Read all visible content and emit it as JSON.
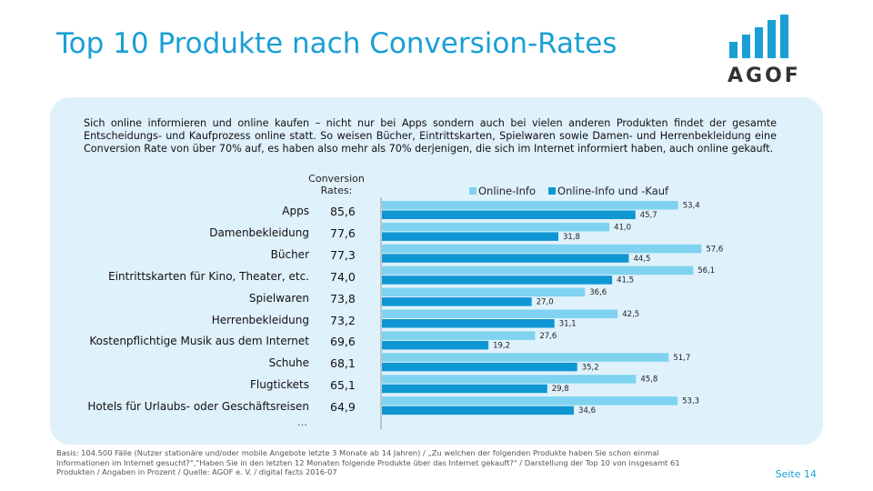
{
  "header": {
    "title": "Top 10 Produkte nach Conversion-Rates"
  },
  "logo": {
    "text": "AGOF",
    "bar_color": "#1a9fd5"
  },
  "intro": "Sich online informieren und online kaufen – nicht nur bei Apps sondern auch bei vielen anderen Produkten findet der gesamte Entscheidungs- und Kaufprozess online statt. So weisen Bücher, Eintrittskarten, Spielwaren sowie Damen- und Herrenbekleidung eine Conversion Rate von über 70% auf, es haben also mehr als 70% derjenigen, die sich im Internet informiert haben, auch online gekauft.",
  "conversion_header": {
    "line1": "Conversion",
    "line2": "Rates:"
  },
  "conversion_rates": [
    "85,6",
    "77,6",
    "77,3",
    "74,0",
    "73,8",
    "73,2",
    "69,6",
    "68,1",
    "65,1",
    "64,9"
  ],
  "ellipsis": "…",
  "chart_data": {
    "type": "bar",
    "orientation": "horizontal",
    "categories": [
      "Apps",
      "Damenbekleidung",
      "Bücher",
      "Eintrittskarten für Kino, Theater, etc.",
      "Spielwaren",
      "Herrenbekleidung",
      "Kostenpflichtige Musik aus dem Internet",
      "Schuhe",
      "Flugtickets",
      "Hotels für Urlaubs- oder Geschäftsreisen"
    ],
    "series": [
      {
        "name": "Online-Info",
        "color": "#7fd3f0",
        "values": [
          53.4,
          41.0,
          57.6,
          56.1,
          36.6,
          42.5,
          27.6,
          51.7,
          45.8,
          53.3
        ],
        "labels": [
          "53,4",
          "41,0",
          "57,6",
          "56,1",
          "36,6",
          "42,5",
          "27,6",
          "51,7",
          "45,8",
          "53,3"
        ]
      },
      {
        "name": "Online-Info und -Kauf",
        "color": "#0f97d4",
        "values": [
          45.7,
          31.8,
          44.5,
          41.5,
          27.0,
          31.1,
          19.2,
          35.2,
          29.8,
          34.6
        ],
        "labels": [
          "45,7",
          "31,8",
          "44,5",
          "41,5",
          "27,0",
          "31,1",
          "19,2",
          "35,2",
          "29,8",
          "34,6"
        ]
      }
    ],
    "legend_position": "top"
  },
  "footer": "Basis: 104.500 Fälle (Nutzer stationäre und/oder mobile Angebote letzte 3 Monate ab 14 Jahren) / „Zu welchen der folgenden Produkte haben Sie schon einmal Informationen im Internet gesucht?\",\"Haben Sie in den letzten 12 Monaten folgende Produkte über das Internet gekauft?\" / Darstellung der Top 10 von insgesamt 61 Produkten / Angaben in Prozent / Quelle: AGOF e. V. / digital facts 2016-07",
  "page_label": "Seite 14"
}
